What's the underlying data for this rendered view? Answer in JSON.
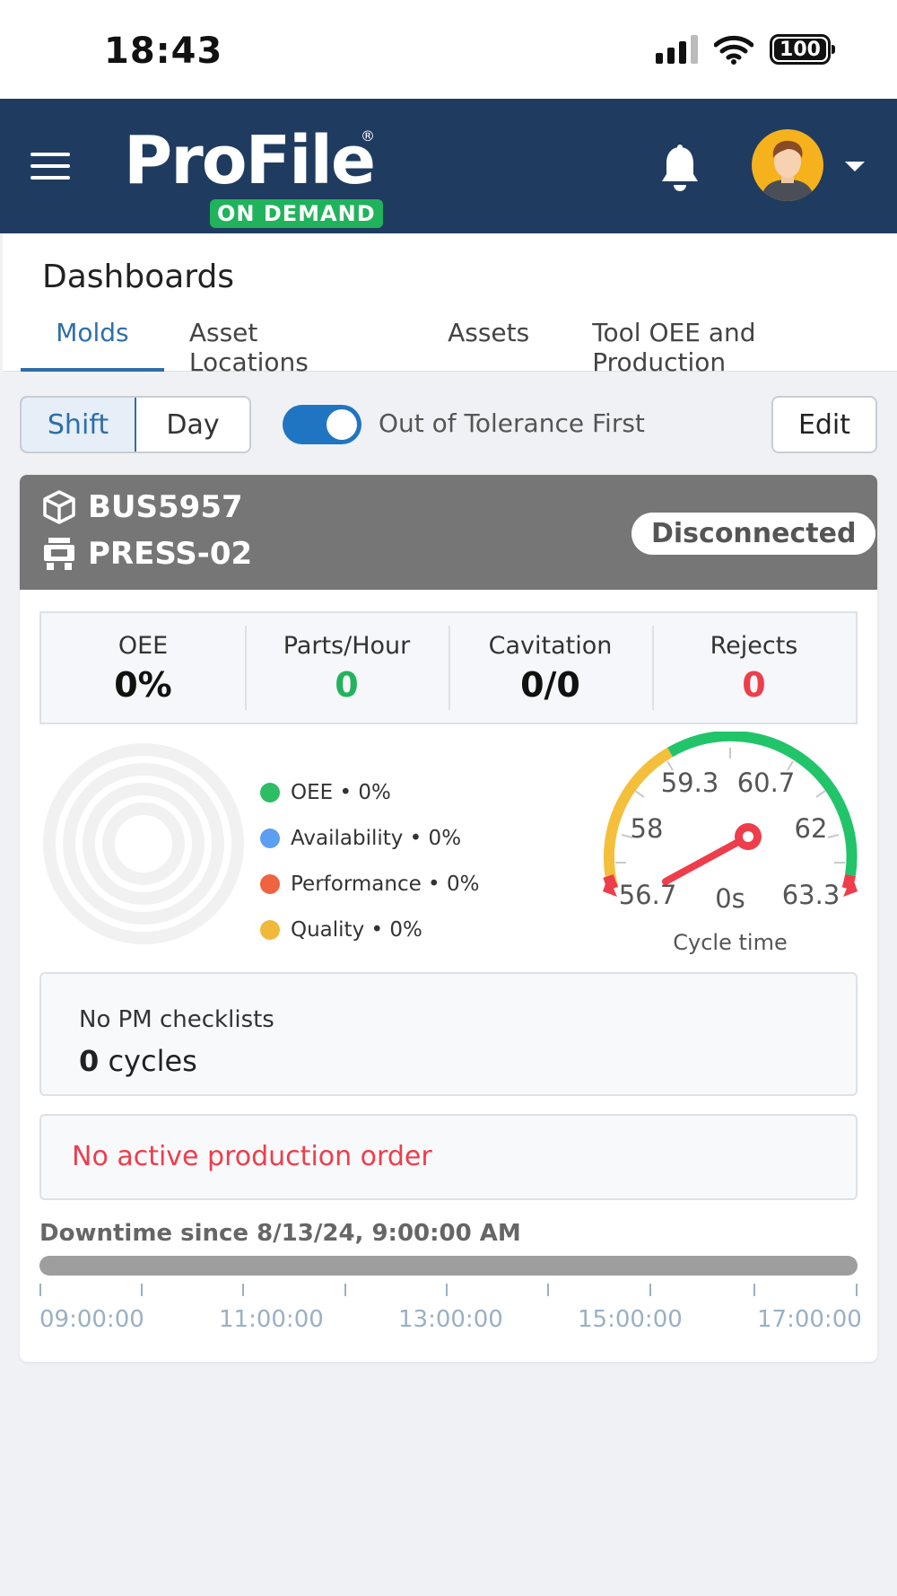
{
  "status_bar": {
    "time": "18:43",
    "battery": "100"
  },
  "app_header": {
    "brand": "ProFile",
    "registered": "®",
    "badge": "ON DEMAND"
  },
  "dashboards": {
    "title": "Dashboards",
    "tabs": [
      {
        "label": "Molds",
        "active": true
      },
      {
        "label": "Asset Locations",
        "active": false
      },
      {
        "label": "Assets",
        "active": false
      },
      {
        "label": "Tool OEE and Production",
        "active": false
      }
    ]
  },
  "controls": {
    "segments": [
      {
        "label": "Shift",
        "selected": true
      },
      {
        "label": "Day",
        "selected": false
      }
    ],
    "toggle": {
      "label": "Out of Tolerance First",
      "on": true
    },
    "edit_label": "Edit"
  },
  "mold_card": {
    "mold_id": "BUS5957",
    "press_id": "PRESS-02",
    "status": "Disconnected",
    "stats": [
      {
        "label": "OEE",
        "value": "0%",
        "color": "#111111"
      },
      {
        "label": "Parts/Hour",
        "value": "0",
        "color": "#22b35d"
      },
      {
        "label": "Cavitation",
        "value": "0/0",
        "color": "#111111"
      },
      {
        "label": "Rejects",
        "value": "0",
        "color": "#ee3d4b"
      }
    ],
    "oee_legend": [
      {
        "label": "OEE • 0%",
        "color": "#2ebd63"
      },
      {
        "label": "Availability • 0%",
        "color": "#5b9ef2"
      },
      {
        "label": "Performance • 0%",
        "color": "#ef6340"
      },
      {
        "label": "Quality • 0%",
        "color": "#f1b93a"
      }
    ],
    "gauge": {
      "title": "Cycle time",
      "value_label": "0s",
      "value": 0,
      "scale_labels": [
        "56.7",
        "58",
        "59.3",
        "60.7",
        "62",
        "63.3"
      ],
      "colors": {
        "low": "#f4bf3b",
        "ok": "#22c46a",
        "limit": "#ee3d4b",
        "needle": "#ee3d4b"
      }
    },
    "pm": {
      "title": "No PM checklists",
      "cycles_value": "0",
      "cycles_unit": "cycles"
    },
    "production_order": "No active production order",
    "downtime": {
      "label": "Downtime since 8/13/24, 9:00:00 AM",
      "time_labels": [
        "09:00:00",
        "11:00:00",
        "13:00:00",
        "15:00:00",
        "17:00:00"
      ]
    }
  }
}
